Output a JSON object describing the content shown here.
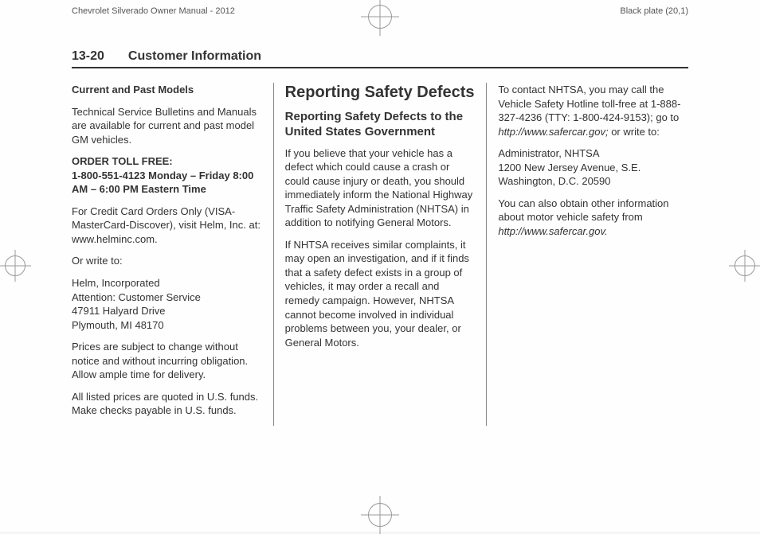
{
  "header": {
    "left": "Chevrolet Silverado Owner Manual - 2012",
    "right": "Black plate (20,1)"
  },
  "section_header": {
    "page_num": "13-20",
    "title": "Customer Information"
  },
  "col1": {
    "h": "Current and Past Models",
    "p1": "Technical Service Bulletins and Manuals are available for current and past model GM vehicles.",
    "order_label": "ORDER TOLL FREE:",
    "order_phone": "1-800-551-4123 Monday – Friday 8:00 AM – 6:00 PM Eastern Time",
    "p2": "For Credit Card Orders Only (VISA-MasterCard-Discover), visit Helm, Inc. at: www.helminc.com.",
    "p3": "Or write to:",
    "addr1": "Helm, Incorporated",
    "addr2": "Attention: Customer Service",
    "addr3": "47911 Halyard Drive",
    "addr4": "Plymouth, MI 48170",
    "p4": "Prices are subject to change without notice and without incurring obligation. Allow ample time for delivery.",
    "p5": "All listed prices are quoted in U.S. funds. Make checks payable in U.S. funds."
  },
  "col2": {
    "h1": "Reporting Safety Defects",
    "h2": "Reporting Safety Defects to the United States Government",
    "p1": "If you believe that your vehicle has a defect which could cause a crash or could cause injury or death, you should immediately inform the National Highway Traffic Safety Administration (NHTSA) in addition to notifying General Motors.",
    "p2": "If NHTSA receives similar complaints, it may open an investigation, and if it finds that a safety defect exists in a group of vehicles, it may order a recall and remedy campaign. However, NHTSA cannot become involved in individual problems between you, your dealer, or General Motors."
  },
  "col3": {
    "p1a": "To contact NHTSA, you may call the Vehicle Safety Hotline toll-free at 1-888-327-4236 (TTY: 1-800-424-9153); go to ",
    "p1url": "http://www.safercar.gov;",
    "p1b": " or write to:",
    "addr1": "Administrator, NHTSA",
    "addr2": "1200 New Jersey Avenue, S.E.",
    "addr3": "Washington, D.C. 20590",
    "p2a": "You can also obtain other information about motor vehicle safety from ",
    "p2url": "http://www.safercar.gov."
  }
}
